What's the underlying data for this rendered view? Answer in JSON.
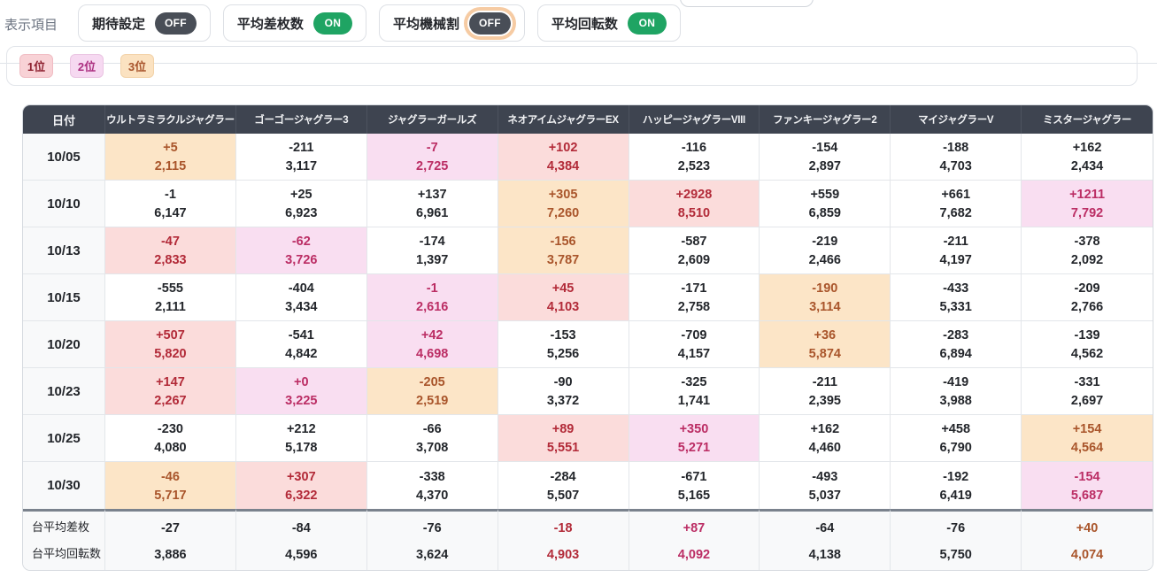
{
  "toolbar": {
    "label": "表示項目",
    "toggles": [
      {
        "label": "期待設定",
        "state": "OFF",
        "focused": false
      },
      {
        "label": "平均差枚数",
        "state": "ON",
        "focused": false
      },
      {
        "label": "平均機械割",
        "state": "OFF",
        "focused": true
      },
      {
        "label": "平均回転数",
        "state": "ON",
        "focused": false
      }
    ]
  },
  "legend": {
    "items": [
      {
        "label": "1位",
        "rank": 1
      },
      {
        "label": "2位",
        "rank": 2
      },
      {
        "label": "3位",
        "rank": 3
      }
    ]
  },
  "colors": {
    "header_bg": "#3e4450",
    "toggle_on": "#1fa463",
    "toggle_off": "#494e57",
    "focus_ring": "#f6cba3",
    "rank1_bg": "#fbdcdb",
    "rank1_text": "#b22a38",
    "rank2_bg": "#f9def1",
    "rank2_text": "#bb2d64",
    "rank3_bg": "#fce5c7",
    "rank3_text": "#a9552b"
  },
  "table": {
    "date_header": "日付",
    "columns": [
      "ウルトラミラクルジャグラー",
      "ゴーゴージャグラー3",
      "ジャグラーガールズ",
      "ネオアイムジャグラーEX",
      "ハッピージャグラーVIII",
      "ファンキージャグラー2",
      "マイジャグラーV",
      "ミスタージャグラー"
    ],
    "rows": [
      {
        "date": "10/05",
        "cells": [
          {
            "diff": "+5",
            "spins": "2,115",
            "rank": 3
          },
          {
            "diff": "-211",
            "spins": "3,117",
            "rank": 0
          },
          {
            "diff": "-7",
            "spins": "2,725",
            "rank": 2
          },
          {
            "diff": "+102",
            "spins": "4,384",
            "rank": 1
          },
          {
            "diff": "-116",
            "spins": "2,523",
            "rank": 0
          },
          {
            "diff": "-154",
            "spins": "2,897",
            "rank": 0
          },
          {
            "diff": "-188",
            "spins": "4,703",
            "rank": 0
          },
          {
            "diff": "+162",
            "spins": "2,434",
            "rank": 0
          }
        ]
      },
      {
        "date": "10/10",
        "cells": [
          {
            "diff": "-1",
            "spins": "6,147",
            "rank": 0
          },
          {
            "diff": "+25",
            "spins": "6,923",
            "rank": 0
          },
          {
            "diff": "+137",
            "spins": "6,961",
            "rank": 0
          },
          {
            "diff": "+305",
            "spins": "7,260",
            "rank": 3
          },
          {
            "diff": "+2928",
            "spins": "8,510",
            "rank": 1
          },
          {
            "diff": "+559",
            "spins": "6,859",
            "rank": 0
          },
          {
            "diff": "+661",
            "spins": "7,682",
            "rank": 0
          },
          {
            "diff": "+1211",
            "spins": "7,792",
            "rank": 2
          }
        ]
      },
      {
        "date": "10/13",
        "cells": [
          {
            "diff": "-47",
            "spins": "2,833",
            "rank": 1
          },
          {
            "diff": "-62",
            "spins": "3,726",
            "rank": 2
          },
          {
            "diff": "-174",
            "spins": "1,397",
            "rank": 0
          },
          {
            "diff": "-156",
            "spins": "3,787",
            "rank": 3
          },
          {
            "diff": "-587",
            "spins": "2,609",
            "rank": 0
          },
          {
            "diff": "-219",
            "spins": "2,466",
            "rank": 0
          },
          {
            "diff": "-211",
            "spins": "4,197",
            "rank": 0
          },
          {
            "diff": "-378",
            "spins": "2,092",
            "rank": 0
          }
        ]
      },
      {
        "date": "10/15",
        "cells": [
          {
            "diff": "-555",
            "spins": "2,111",
            "rank": 0
          },
          {
            "diff": "-404",
            "spins": "3,434",
            "rank": 0
          },
          {
            "diff": "-1",
            "spins": "2,616",
            "rank": 2
          },
          {
            "diff": "+45",
            "spins": "4,103",
            "rank": 1
          },
          {
            "diff": "-171",
            "spins": "2,758",
            "rank": 0
          },
          {
            "diff": "-190",
            "spins": "3,114",
            "rank": 3
          },
          {
            "diff": "-433",
            "spins": "5,331",
            "rank": 0
          },
          {
            "diff": "-209",
            "spins": "2,766",
            "rank": 0
          }
        ]
      },
      {
        "date": "10/20",
        "cells": [
          {
            "diff": "+507",
            "spins": "5,820",
            "rank": 1
          },
          {
            "diff": "-541",
            "spins": "4,842",
            "rank": 0
          },
          {
            "diff": "+42",
            "spins": "4,698",
            "rank": 2
          },
          {
            "diff": "-153",
            "spins": "5,256",
            "rank": 0
          },
          {
            "diff": "-709",
            "spins": "4,157",
            "rank": 0
          },
          {
            "diff": "+36",
            "spins": "5,874",
            "rank": 3
          },
          {
            "diff": "-283",
            "spins": "6,894",
            "rank": 0
          },
          {
            "diff": "-139",
            "spins": "4,562",
            "rank": 0
          }
        ]
      },
      {
        "date": "10/23",
        "cells": [
          {
            "diff": "+147",
            "spins": "2,267",
            "rank": 1
          },
          {
            "diff": "+0",
            "spins": "3,225",
            "rank": 2
          },
          {
            "diff": "-205",
            "spins": "2,519",
            "rank": 3
          },
          {
            "diff": "-90",
            "spins": "3,372",
            "rank": 0
          },
          {
            "diff": "-325",
            "spins": "1,741",
            "rank": 0
          },
          {
            "diff": "-211",
            "spins": "2,395",
            "rank": 0
          },
          {
            "diff": "-419",
            "spins": "3,988",
            "rank": 0
          },
          {
            "diff": "-331",
            "spins": "2,697",
            "rank": 0
          }
        ]
      },
      {
        "date": "10/25",
        "cells": [
          {
            "diff": "-230",
            "spins": "4,080",
            "rank": 0
          },
          {
            "diff": "+212",
            "spins": "5,178",
            "rank": 0
          },
          {
            "diff": "-66",
            "spins": "3,708",
            "rank": 0
          },
          {
            "diff": "+89",
            "spins": "5,551",
            "rank": 1
          },
          {
            "diff": "+350",
            "spins": "5,271",
            "rank": 2
          },
          {
            "diff": "+162",
            "spins": "4,460",
            "rank": 0
          },
          {
            "diff": "+458",
            "spins": "6,790",
            "rank": 0
          },
          {
            "diff": "+154",
            "spins": "4,564",
            "rank": 3
          }
        ]
      },
      {
        "date": "10/30",
        "cells": [
          {
            "diff": "-46",
            "spins": "5,717",
            "rank": 3
          },
          {
            "diff": "+307",
            "spins": "6,322",
            "rank": 1
          },
          {
            "diff": "-338",
            "spins": "4,370",
            "rank": 0
          },
          {
            "diff": "-284",
            "spins": "5,507",
            "rank": 0
          },
          {
            "diff": "-671",
            "spins": "5,165",
            "rank": 0
          },
          {
            "diff": "-493",
            "spins": "5,037",
            "rank": 0
          },
          {
            "diff": "-192",
            "spins": "6,419",
            "rank": 0
          },
          {
            "diff": "-154",
            "spins": "5,687",
            "rank": 2
          }
        ]
      }
    ],
    "footer": {
      "labels": [
        "台平均差枚",
        "台平均回転数"
      ],
      "cells": [
        {
          "diff": "-27",
          "spins": "3,886",
          "rank": 0
        },
        {
          "diff": "-84",
          "spins": "4,596",
          "rank": 0
        },
        {
          "diff": "-76",
          "spins": "3,624",
          "rank": 0
        },
        {
          "diff": "-18",
          "spins": "4,903",
          "rank": 1
        },
        {
          "diff": "+87",
          "spins": "4,092",
          "rank": 2
        },
        {
          "diff": "-64",
          "spins": "4,138",
          "rank": 0
        },
        {
          "diff": "-76",
          "spins": "5,750",
          "rank": 0
        },
        {
          "diff": "+40",
          "spins": "4,074",
          "rank": 3
        }
      ]
    }
  }
}
